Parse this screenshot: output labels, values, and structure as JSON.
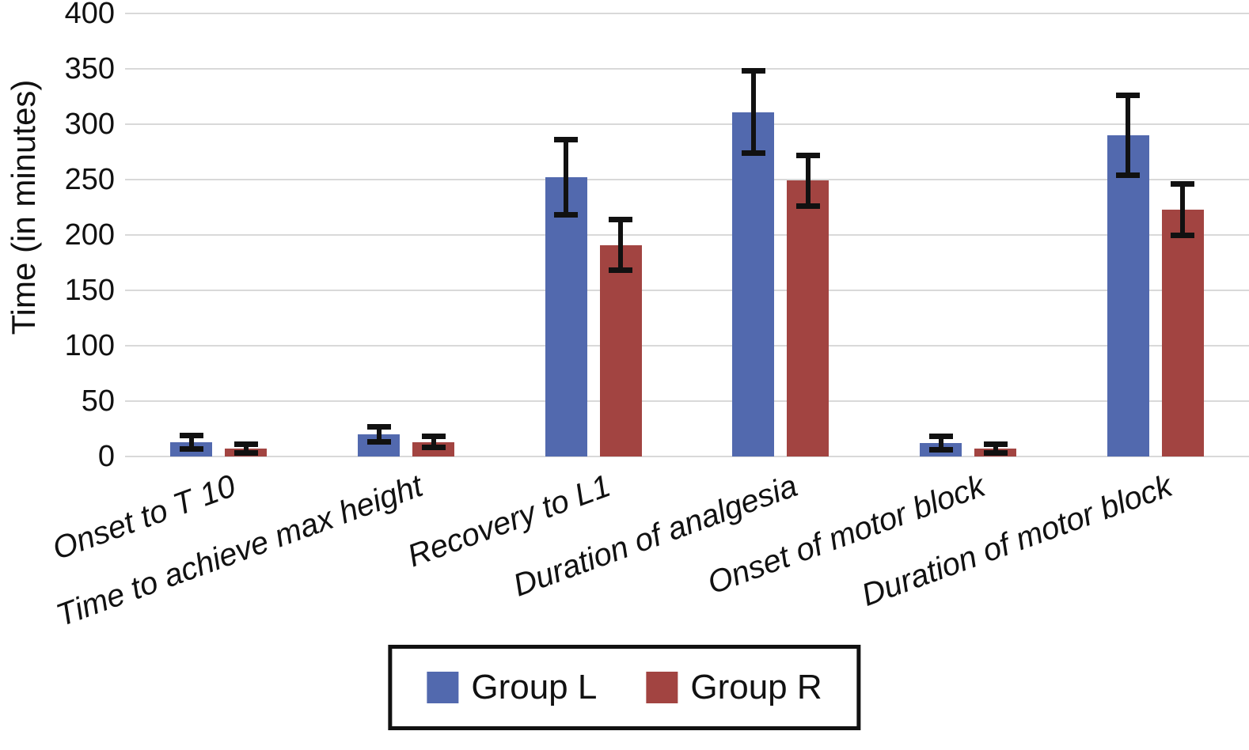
{
  "chart_data": {
    "type": "bar",
    "title": "",
    "xlabel": "",
    "ylabel": "Time (in minutes)",
    "ylim": [
      0,
      400
    ],
    "yticks": [
      0,
      50,
      100,
      150,
      200,
      250,
      300,
      350,
      400
    ],
    "grid": true,
    "legend_position": "bottom",
    "error_bars": true,
    "categories": [
      "Onset to T 10",
      "Time to achieve max height",
      "Recovery to L1",
      "Duration of analgesia",
      "Onset of motor block",
      "Duration of motor block"
    ],
    "series": [
      {
        "name": "Group L",
        "color": "#5269ae",
        "values": [
          13,
          20,
          252,
          311,
          12,
          290
        ],
        "errors": [
          6,
          7,
          34,
          37,
          6,
          36
        ]
      },
      {
        "name": "Group R",
        "color": "#a24441",
        "values": [
          7,
          13,
          191,
          249,
          7,
          223
        ],
        "errors": [
          4,
          5,
          23,
          23,
          4,
          23
        ]
      }
    ]
  },
  "colors": {
    "gridline": "#d9d9d9",
    "text": "#111111",
    "error_bar": "#111111",
    "legend_border": "#111111",
    "background": "#ffffff"
  }
}
